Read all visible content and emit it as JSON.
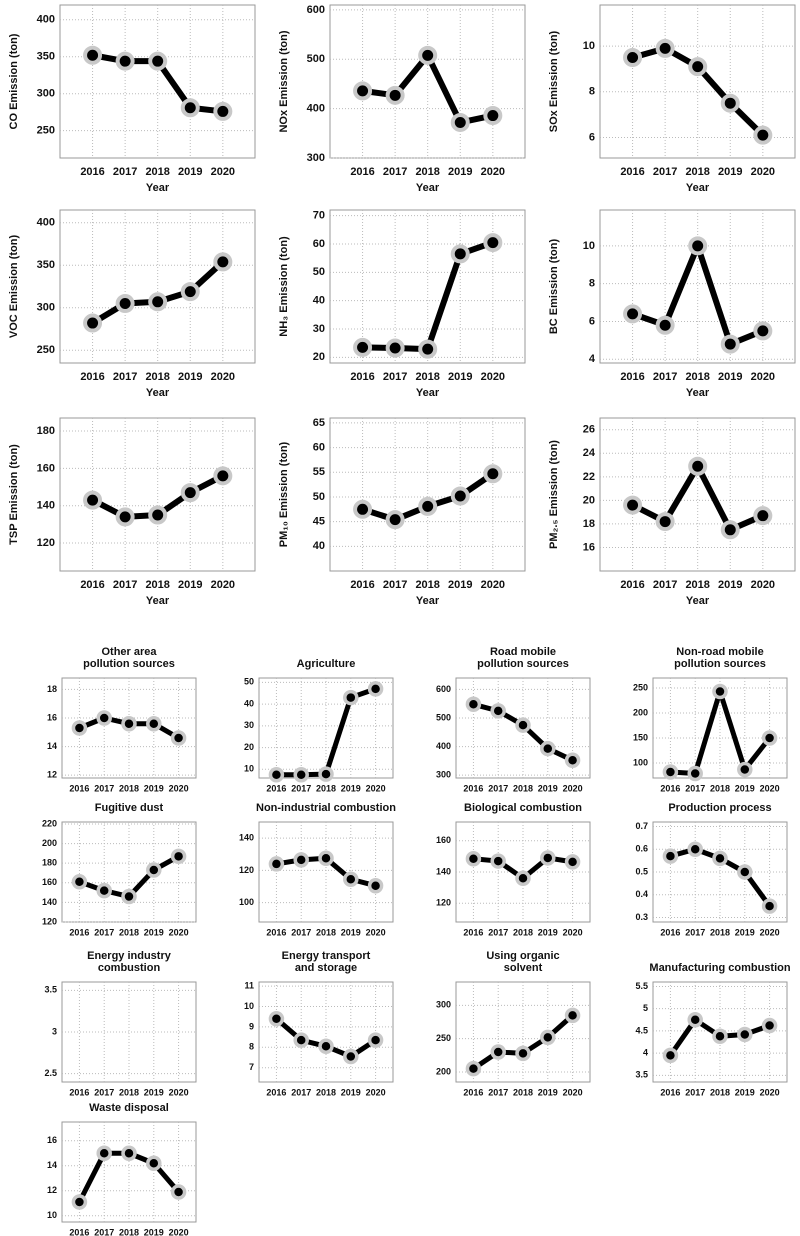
{
  "chart_data": [
    {
      "type": "line",
      "ylabel": "CO Emission (ton)",
      "xlabel": "Year",
      "categories": [
        "2016",
        "2017",
        "2018",
        "2019",
        "2020"
      ],
      "values": [
        352,
        344,
        344,
        281,
        276
      ],
      "ylim": [
        213,
        420
      ],
      "yticks": [
        250,
        300,
        350,
        400
      ],
      "grid": true,
      "color": "#000000"
    },
    {
      "type": "line",
      "ylabel": "NOx Emission (ton)",
      "xlabel": "Year",
      "categories": [
        "2016",
        "2017",
        "2018",
        "2019",
        "2020"
      ],
      "values": [
        436,
        427,
        508,
        372,
        386
      ],
      "ylim": [
        300,
        610
      ],
      "yticks": [
        300,
        400,
        500,
        600
      ],
      "grid": true,
      "color": "#000000"
    },
    {
      "type": "line",
      "ylabel": "SOx Emission (ton)",
      "xlabel": "Year",
      "categories": [
        "2016",
        "2017",
        "2018",
        "2019",
        "2020"
      ],
      "values": [
        9.5,
        9.9,
        9.1,
        7.5,
        6.1
      ],
      "ylim": [
        5.1,
        11.8
      ],
      "yticks": [
        6,
        8,
        10
      ],
      "grid": true,
      "color": "#000000"
    },
    {
      "type": "line",
      "ylabel": "VOC Emission (ton)",
      "xlabel": "Year",
      "categories": [
        "2016",
        "2017",
        "2018",
        "2019",
        "2020"
      ],
      "values": [
        282,
        305,
        307,
        319,
        354
      ],
      "ylim": [
        235,
        415
      ],
      "yticks": [
        250,
        300,
        350,
        400
      ],
      "grid": true,
      "color": "#000000"
    },
    {
      "type": "line",
      "ylabel": "NH₃ Emission (ton)",
      "xlabel": "Year",
      "categories": [
        "2016",
        "2017",
        "2018",
        "2019",
        "2020"
      ],
      "values": [
        23.5,
        23.3,
        22.9,
        56.5,
        60.5
      ],
      "ylim": [
        18,
        72
      ],
      "yticks": [
        20,
        30,
        40,
        50,
        60,
        70
      ],
      "grid": true,
      "color": "#000000"
    },
    {
      "type": "line",
      "ylabel": "BC Emission (ton)",
      "xlabel": "Year",
      "categories": [
        "2016",
        "2017",
        "2018",
        "2019",
        "2020"
      ],
      "values": [
        6.4,
        5.8,
        10.0,
        4.8,
        5.5
      ],
      "ylim": [
        3.8,
        11.9
      ],
      "yticks": [
        4,
        6,
        8,
        10
      ],
      "grid": true,
      "color": "#000000"
    },
    {
      "type": "line",
      "ylabel": "TSP Emission (ton)",
      "xlabel": "Year",
      "categories": [
        "2016",
        "2017",
        "2018",
        "2019",
        "2020"
      ],
      "values": [
        143,
        134,
        135,
        147,
        156
      ],
      "ylim": [
        105,
        187
      ],
      "yticks": [
        120,
        140,
        160,
        180
      ],
      "grid": true,
      "color": "#000000"
    },
    {
      "type": "line",
      "ylabel": "PM₁₀ Emission (ton)",
      "xlabel": "Year",
      "categories": [
        "2016",
        "2017",
        "2018",
        "2019",
        "2020"
      ],
      "values": [
        47.5,
        45.4,
        48.1,
        50.2,
        54.7
      ],
      "ylim": [
        35,
        66
      ],
      "yticks": [
        40,
        45,
        50,
        55,
        60,
        65
      ],
      "grid": true,
      "color": "#000000"
    },
    {
      "type": "line",
      "ylabel": "PM₂.₅ Emission (ton)",
      "xlabel": "Year",
      "categories": [
        "2016",
        "2017",
        "2018",
        "2019",
        "2020"
      ],
      "values": [
        19.6,
        18.2,
        22.9,
        17.5,
        18.7
      ],
      "ylim": [
        14,
        27
      ],
      "yticks": [
        16,
        18,
        20,
        22,
        24,
        26
      ],
      "grid": true,
      "color": "#000000"
    },
    {
      "type": "line",
      "title": [
        "Other area",
        "pollution sources"
      ],
      "categories": [
        "2016",
        "2017",
        "2018",
        "2019",
        "2020"
      ],
      "values": [
        15.3,
        16.0,
        15.6,
        15.6,
        14.6
      ],
      "ylim": [
        11.8,
        18.8
      ],
      "yticks": [
        12,
        14,
        16,
        18
      ],
      "grid": true,
      "color": "#000000"
    },
    {
      "type": "line",
      "title": "Agriculture",
      "categories": [
        "2016",
        "2017",
        "2018",
        "2019",
        "2020"
      ],
      "values": [
        7.5,
        7.5,
        7.8,
        43,
        47
      ],
      "ylim": [
        6,
        52
      ],
      "yticks": [
        10,
        20,
        30,
        40,
        50
      ],
      "grid": true,
      "color": "#000000"
    },
    {
      "type": "line",
      "title": [
        "Road mobile",
        "pollution sources"
      ],
      "categories": [
        "2016",
        "2017",
        "2018",
        "2019",
        "2020"
      ],
      "values": [
        548,
        525,
        475,
        393,
        352
      ],
      "ylim": [
        290,
        640
      ],
      "yticks": [
        300,
        400,
        500,
        600
      ],
      "grid": true,
      "color": "#000000"
    },
    {
      "type": "line",
      "title": [
        "Non-road mobile",
        "pollution sources"
      ],
      "categories": [
        "2016",
        "2017",
        "2018",
        "2019",
        "2020"
      ],
      "values": [
        82,
        79,
        243,
        87,
        150
      ],
      "ylim": [
        70,
        270
      ],
      "yticks": [
        100,
        150,
        200,
        250
      ],
      "grid": true,
      "color": "#000000"
    },
    {
      "type": "line",
      "title": "Fugitive dust",
      "categories": [
        "2016",
        "2017",
        "2018",
        "2019",
        "2020"
      ],
      "values": [
        161,
        152,
        146,
        173,
        187
      ],
      "ylim": [
        120,
        222
      ],
      "yticks": [
        120,
        140,
        160,
        180,
        200,
        220
      ],
      "grid": true,
      "color": "#000000"
    },
    {
      "type": "line",
      "title": "Non-industrial combustion",
      "categories": [
        "2016",
        "2017",
        "2018",
        "2019",
        "2020"
      ],
      "values": [
        124,
        126.5,
        127.5,
        114.5,
        110.5
      ],
      "ylim": [
        88,
        150
      ],
      "yticks": [
        100,
        120,
        140
      ],
      "grid": true,
      "color": "#000000"
    },
    {
      "type": "line",
      "title": "Biological combustion",
      "categories": [
        "2016",
        "2017",
        "2018",
        "2019",
        "2020"
      ],
      "values": [
        148.5,
        147,
        136,
        149,
        146.5
      ],
      "ylim": [
        108,
        172
      ],
      "yticks": [
        120,
        140,
        160
      ],
      "grid": true,
      "color": "#000000"
    },
    {
      "type": "line",
      "title": "Production process",
      "categories": [
        "2016",
        "2017",
        "2018",
        "2019",
        "2020"
      ],
      "values": [
        0.57,
        0.6,
        0.56,
        0.5,
        0.35
      ],
      "ylim": [
        0.28,
        0.72
      ],
      "yticks": [
        0.3,
        0.4,
        0.5,
        0.6,
        0.7
      ],
      "grid": true,
      "color": "#000000"
    },
    {
      "type": "line",
      "title": [
        "Energy industry",
        "combustion"
      ],
      "categories": [
        "2016",
        "2017",
        "2018",
        "2019",
        "2020"
      ],
      "values": [
        null,
        null,
        null,
        null,
        null
      ],
      "ylim": [
        2.4,
        3.6
      ],
      "yticks": [
        2.5,
        3,
        3.5
      ],
      "grid": true,
      "color": "#000000"
    },
    {
      "type": "line",
      "title": [
        "Energy transport",
        "and storage"
      ],
      "categories": [
        "2016",
        "2017",
        "2018",
        "2019",
        "2020"
      ],
      "values": [
        9.4,
        8.35,
        8.05,
        7.55,
        8.35
      ],
      "ylim": [
        6.3,
        11.2
      ],
      "yticks": [
        7,
        8,
        9,
        10,
        11
      ],
      "grid": true,
      "color": "#000000"
    },
    {
      "type": "line",
      "title": [
        "Using organic",
        "solvent"
      ],
      "categories": [
        "2016",
        "2017",
        "2018",
        "2019",
        "2020"
      ],
      "values": [
        205,
        230,
        228,
        252,
        285
      ],
      "ylim": [
        185,
        335
      ],
      "yticks": [
        200,
        250,
        300
      ],
      "grid": true,
      "color": "#000000"
    },
    {
      "type": "line",
      "title": "Manufacturing combustion",
      "categories": [
        "2016",
        "2017",
        "2018",
        "2019",
        "2020"
      ],
      "values": [
        3.95,
        4.75,
        4.38,
        4.42,
        4.62
      ],
      "ylim": [
        3.35,
        5.6
      ],
      "yticks": [
        3.5,
        4,
        4.5,
        5,
        5.5
      ],
      "grid": true,
      "color": "#000000"
    },
    {
      "type": "line",
      "title": "Waste disposal",
      "categories": [
        "2016",
        "2017",
        "2018",
        "2019",
        "2020"
      ],
      "values": [
        11.1,
        15.0,
        15.0,
        14.2,
        11.9
      ],
      "ylim": [
        9.5,
        17.5
      ],
      "yticks": [
        10,
        12,
        14,
        16
      ],
      "grid": true,
      "color": "#000000"
    }
  ]
}
